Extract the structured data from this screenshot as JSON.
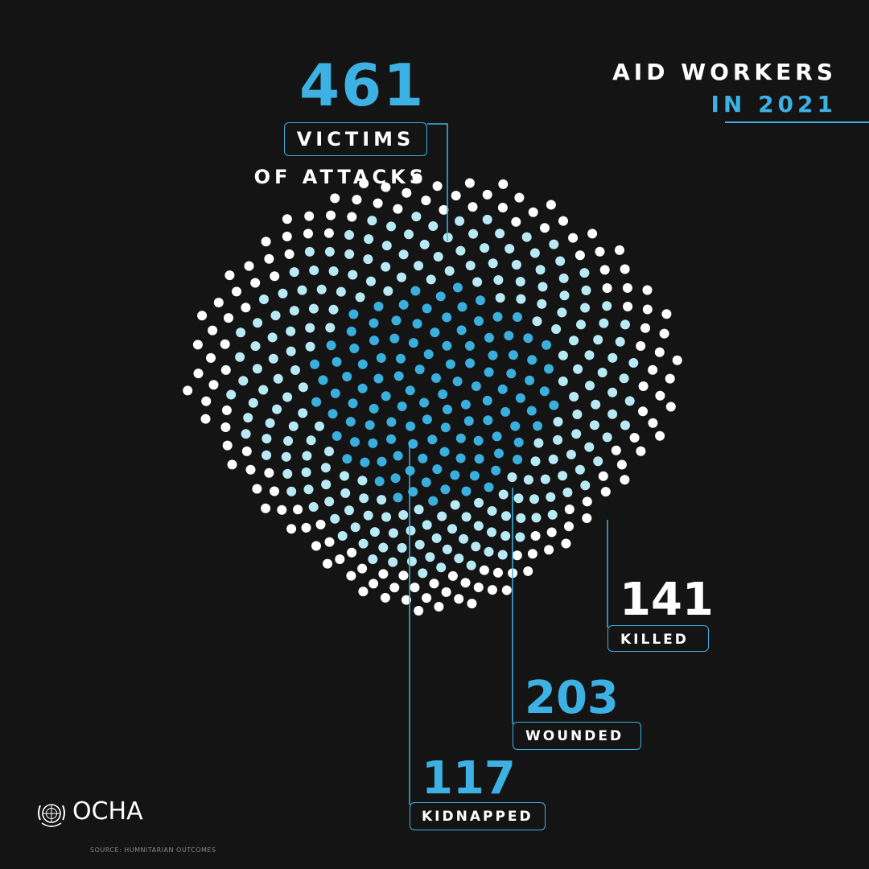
{
  "headline": {
    "line1": "AID WORKERS",
    "line2": "IN 2021"
  },
  "total": {
    "value": "461",
    "label_line1": "VICTIMS",
    "label_line2": "OF ATTACKS"
  },
  "stats": [
    {
      "value": "141",
      "label": "KILLED",
      "color": "#ffffff"
    },
    {
      "value": "203",
      "label": "WOUNDED",
      "color": "#3db1e3"
    },
    {
      "value": "117",
      "label": "KIDNAPPED",
      "color": "#3db1e3"
    }
  ],
  "logo": {
    "text": "OCHA"
  },
  "source": "SOURCE: HUMNITARIAN OUTCOMES",
  "colors": {
    "background": "#141414",
    "accent": "#3db1e3",
    "dot_killed": "#ffffff",
    "dot_wounded": "#b8eaf5",
    "dot_kidnapped": "#3aaedc"
  }
}
